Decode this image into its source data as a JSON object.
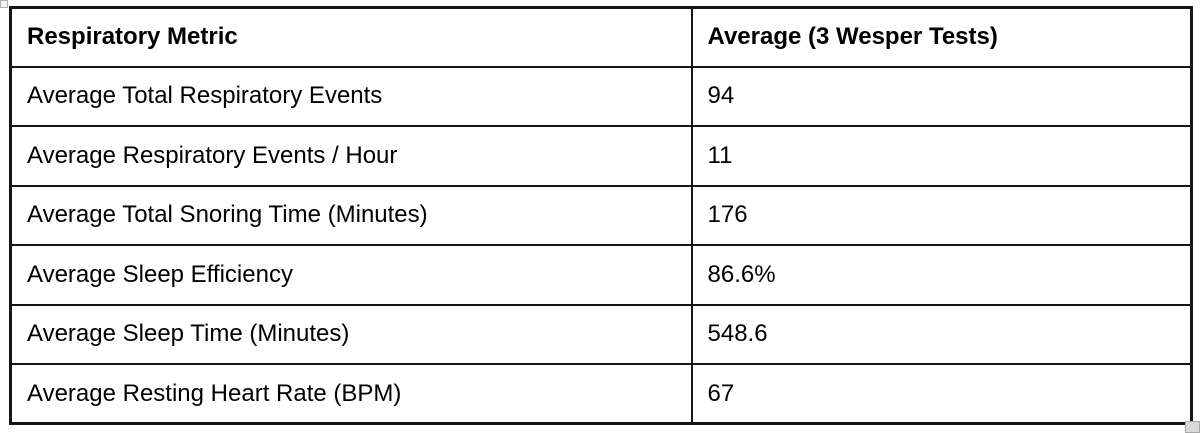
{
  "colors": {
    "border": "#161616",
    "background": "#ffffff",
    "text": "#000000",
    "handle_fill": "#d9d9d9"
  },
  "chart_data": {
    "type": "table",
    "title": "",
    "columns": [
      "Respiratory Metric",
      "Average (3 Wesper Tests)"
    ],
    "rows": [
      {
        "metric": "Average Total Respiratory Events",
        "value": "94"
      },
      {
        "metric": "Average Respiratory Events / Hour",
        "value": "11"
      },
      {
        "metric": "Average Total Snoring Time (Minutes)",
        "value": "176"
      },
      {
        "metric": "Average Sleep Efficiency",
        "value": "86.6%"
      },
      {
        "metric": "Average Sleep Time (Minutes)",
        "value": "548.6"
      },
      {
        "metric": "Average Resting Heart Rate (BPM)",
        "value": "67"
      }
    ]
  }
}
